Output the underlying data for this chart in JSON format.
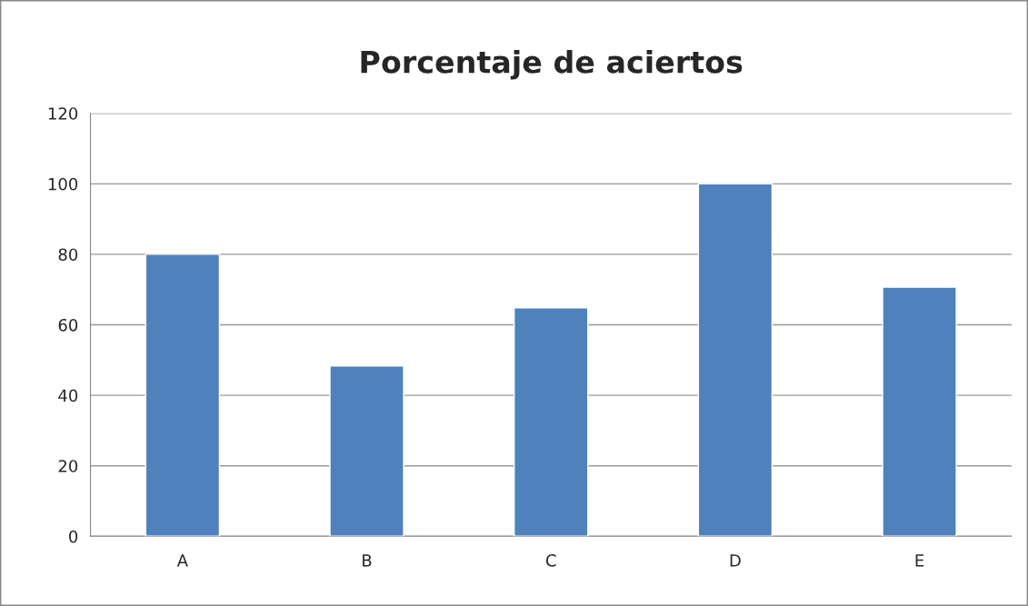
{
  "chart_data": {
    "type": "bar",
    "title": "Porcentaje de aciertos",
    "categories": [
      "A",
      "B",
      "C",
      "D",
      "E"
    ],
    "values": [
      80,
      48.3,
      64.8,
      100,
      70.7
    ],
    "color": "#4f81bd",
    "ylim": [
      0,
      120
    ],
    "yticks": [
      0,
      20,
      40,
      60,
      80,
      100,
      120
    ],
    "grid": "y",
    "legend": false
  }
}
